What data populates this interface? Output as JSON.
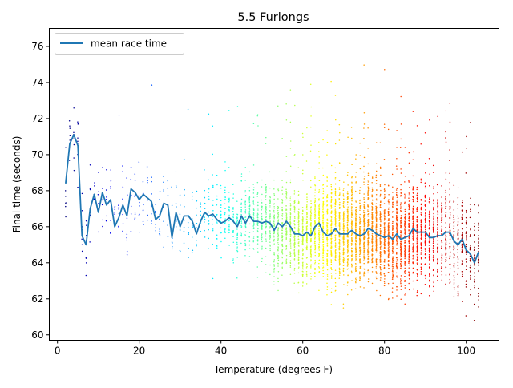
{
  "chart_data": {
    "type": "scatter",
    "title": "5.5 Furlongs",
    "xlabel": "Temperature (degrees F)",
    "ylabel": "Final time (seconds)",
    "xlim": [
      -2,
      108
    ],
    "ylim": [
      59.7,
      77
    ],
    "xticks": [
      "0",
      "20",
      "40",
      "60",
      "80",
      "100"
    ],
    "yticks": [
      "60",
      "62",
      "64",
      "66",
      "68",
      "70",
      "72",
      "74",
      "76"
    ],
    "xtick_values": [
      0,
      20,
      40,
      60,
      80,
      100
    ],
    "ytick_values": [
      60,
      62,
      64,
      66,
      68,
      70,
      72,
      74,
      76
    ],
    "legend": {
      "placement": "upper-left",
      "entries": [
        "mean race time"
      ]
    },
    "colormap": "jet",
    "colormap_range": [
      2,
      103
    ],
    "scatter_description": "individual race final times colored by temperature",
    "series": [
      {
        "name": "mean race time",
        "kind": "line",
        "color": "#1f77b4",
        "x": [
          2,
          3,
          4,
          5,
          6,
          7,
          8,
          9,
          10,
          11,
          12,
          13,
          14,
          15,
          16,
          17,
          18,
          19,
          20,
          21,
          22,
          23,
          24,
          25,
          26,
          27,
          28,
          29,
          30,
          31,
          32,
          33,
          34,
          35,
          36,
          37,
          38,
          39,
          40,
          41,
          42,
          43,
          44,
          45,
          46,
          47,
          48,
          49,
          50,
          51,
          52,
          53,
          54,
          55,
          56,
          57,
          58,
          59,
          60,
          61,
          62,
          63,
          64,
          65,
          66,
          67,
          68,
          69,
          70,
          71,
          72,
          73,
          74,
          75,
          76,
          77,
          78,
          79,
          80,
          81,
          82,
          83,
          84,
          85,
          86,
          87,
          88,
          89,
          90,
          91,
          92,
          93,
          94,
          95,
          96,
          97,
          98,
          99,
          100,
          101,
          102,
          103
        ],
        "y": [
          68.4,
          70.6,
          71.1,
          70.5,
          65.5,
          65.0,
          67.0,
          67.8,
          66.8,
          67.9,
          67.2,
          67.5,
          66.0,
          66.5,
          67.2,
          66.6,
          68.1,
          67.9,
          67.5,
          67.8,
          67.6,
          67.4,
          66.4,
          66.6,
          67.3,
          67.2,
          65.4,
          66.8,
          66.0,
          66.6,
          66.6,
          66.3,
          65.6,
          66.3,
          66.8,
          66.6,
          66.7,
          66.4,
          66.2,
          66.3,
          66.5,
          66.3,
          66.0,
          66.6,
          66.2,
          66.6,
          66.3,
          66.3,
          66.2,
          66.3,
          66.2,
          65.8,
          66.2,
          66.0,
          66.3,
          66.0,
          65.6,
          65.6,
          65.5,
          65.7,
          65.5,
          66.0,
          66.2,
          65.7,
          65.5,
          65.6,
          65.9,
          65.6,
          65.6,
          65.6,
          65.8,
          65.6,
          65.5,
          65.6,
          65.9,
          65.8,
          65.6,
          65.5,
          65.4,
          65.5,
          65.3,
          65.6,
          65.3,
          65.4,
          65.5,
          65.9,
          65.7,
          65.7,
          65.7,
          65.4,
          65.4,
          65.5,
          65.5,
          65.7,
          65.7,
          65.2,
          65.0,
          65.3,
          64.7,
          64.5,
          64.0,
          64.6
        ]
      }
    ]
  }
}
